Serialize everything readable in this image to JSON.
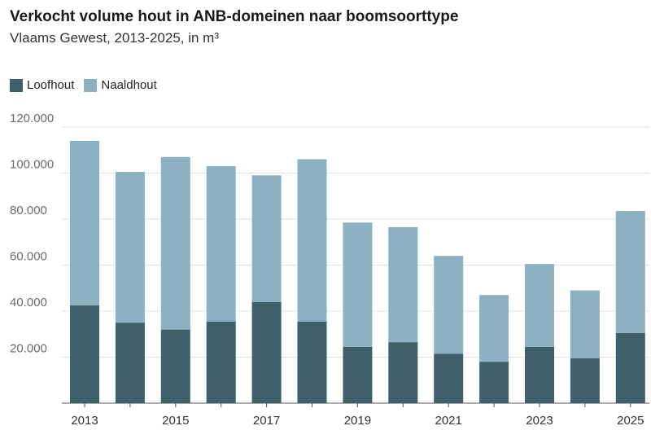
{
  "chart_data": {
    "type": "bar",
    "stacked": true,
    "title": "Verkocht volume hout in ANB-domeinen naar boomsoorttype",
    "subtitle": "Vlaams Gewest, 2013-2025, in m³",
    "categories": [
      "2013",
      "2014",
      "2015",
      "2016",
      "2017",
      "2018",
      "2019",
      "2020",
      "2021",
      "2022",
      "2023",
      "2024",
      "2025"
    ],
    "x_tick_labels": [
      "2013",
      "2015",
      "2017",
      "2019",
      "2021",
      "2023",
      "2025"
    ],
    "series": [
      {
        "name": "Loofhout",
        "color": "#3f5f6b",
        "values": [
          42500,
          35000,
          32000,
          35500,
          44000,
          35500,
          24500,
          26500,
          21500,
          18000,
          24500,
          19500,
          30500
        ]
      },
      {
        "name": "Naaldhout",
        "color": "#8db1c2",
        "values": [
          71500,
          65500,
          75000,
          67500,
          55000,
          70500,
          54000,
          50000,
          42500,
          29000,
          36000,
          29500,
          53000
        ]
      }
    ],
    "ylim": [
      0,
      120000
    ],
    "y_ticks": [
      20000,
      40000,
      60000,
      80000,
      100000,
      120000
    ],
    "y_tick_labels": [
      "20.000",
      "40.000",
      "60.000",
      "80.000",
      "100.000",
      "120.000"
    ],
    "grid": true,
    "legend_position": "top-left"
  }
}
